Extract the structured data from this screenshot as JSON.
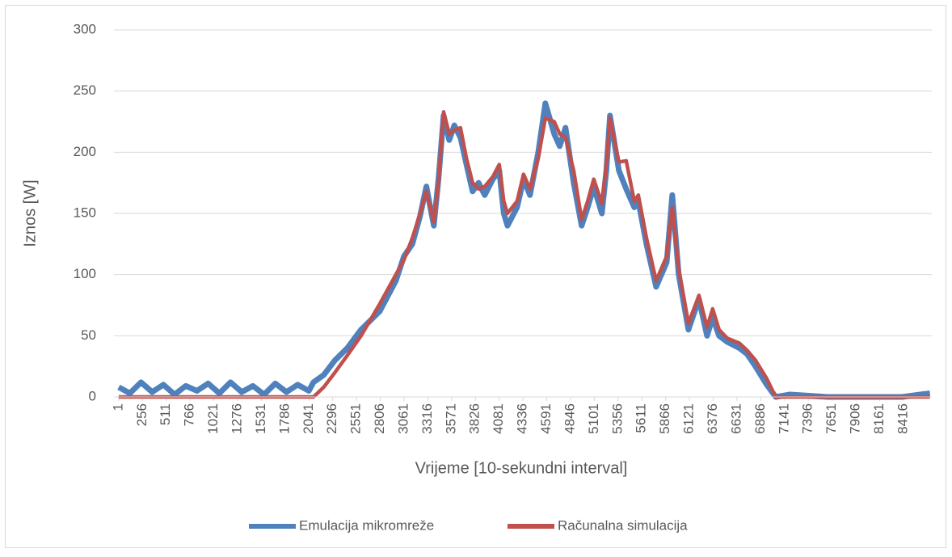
{
  "chart_data": {
    "type": "line",
    "x_label": "Vrijeme [10-sekundni interval]",
    "y_label": "Iznos [W]",
    "x": [
      1,
      120,
      240,
      360,
      480,
      600,
      720,
      840,
      960,
      1080,
      1200,
      1320,
      1440,
      1560,
      1680,
      1800,
      1920,
      2040,
      2090,
      2200,
      2320,
      2453,
      2600,
      2800,
      2973,
      3060,
      3150,
      3233,
      3300,
      3380,
      3430,
      3485,
      3545,
      3600,
      3666,
      3730,
      3796,
      3860,
      3926,
      4013,
      4082,
      4130,
      4170,
      4273,
      4342,
      4411,
      4500,
      4576,
      4671,
      4730,
      4792,
      4880,
      4965,
      5030,
      5095,
      5182,
      5230,
      5269,
      5365,
      5443,
      5530,
      5573,
      5660,
      5764,
      5877,
      5937,
      6006,
      6110,
      6223,
      6310,
      6370,
      6439,
      6526,
      6656,
      6740,
      6829,
      6950,
      7046,
      7200,
      7600,
      8000,
      8400,
      8700
    ],
    "series": [
      {
        "name": "Emulacija mikromreže",
        "color": "#4f81bd",
        "values": [
          8,
          3,
          12,
          4,
          10,
          2,
          9,
          5,
          11,
          3,
          12,
          4,
          9,
          2,
          11,
          4,
          10,
          5,
          12,
          18,
          30,
          40,
          55,
          70,
          95,
          115,
          125,
          148,
          172,
          140,
          178,
          230,
          210,
          222,
          212,
          190,
          168,
          175,
          165,
          178,
          185,
          150,
          140,
          155,
          178,
          165,
          200,
          240,
          215,
          205,
          220,
          175,
          140,
          155,
          172,
          150,
          185,
          230,
          185,
          170,
          155,
          160,
          125,
          90,
          110,
          165,
          100,
          55,
          80,
          50,
          65,
          50,
          45,
          40,
          35,
          25,
          10,
          0,
          2,
          0,
          0,
          0,
          3
        ]
      },
      {
        "name": "Računalna simulacija",
        "color": "#c0504d",
        "values": [
          0,
          0,
          0,
          0,
          0,
          0,
          0,
          0,
          0,
          0,
          0,
          0,
          0,
          0,
          0,
          0,
          0,
          0,
          0,
          8,
          20,
          34,
          50,
          76,
          100,
          112,
          130,
          150,
          168,
          143,
          175,
          233,
          215,
          218,
          220,
          195,
          175,
          170,
          172,
          180,
          190,
          160,
          150,
          160,
          182,
          170,
          195,
          228,
          225,
          215,
          212,
          185,
          145,
          160,
          178,
          158,
          190,
          228,
          192,
          193,
          160,
          165,
          130,
          95,
          115,
          155,
          105,
          60,
          83,
          57,
          72,
          55,
          48,
          44,
          38,
          30,
          15,
          0,
          0,
          0,
          0,
          0,
          0
        ]
      }
    ],
    "xlim": [
      -50,
      8720
    ],
    "xticks": [
      1,
      256,
      511,
      766,
      1021,
      1276,
      1531,
      1786,
      2041,
      2296,
      2551,
      2806,
      3061,
      3316,
      3571,
      3826,
      4081,
      4336,
      4591,
      4846,
      5101,
      5356,
      5611,
      5866,
      6121,
      6376,
      6631,
      6886,
      7141,
      7396,
      7651,
      7906,
      8161,
      8416
    ],
    "ylim": [
      0,
      300
    ],
    "yticks": [
      0,
      50,
      100,
      150,
      200,
      250,
      300
    ],
    "grid": true
  }
}
